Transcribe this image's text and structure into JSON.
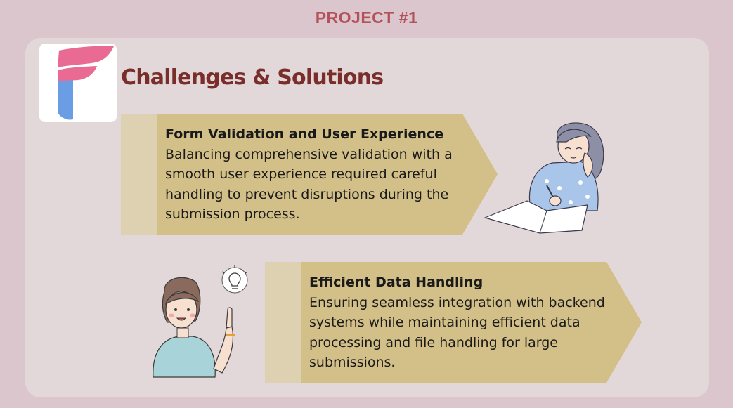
{
  "header": {
    "project_label": "PROJECT #1"
  },
  "section": {
    "title": "Challenges & Solutions"
  },
  "challenges": [
    {
      "heading": "Form Validation and User Experience",
      "body": "Balancing comprehensive validation with a smooth user experience required careful handling to prevent disruptions during the submission process."
    },
    {
      "heading": "Efficient Data Handling",
      "body": "Ensuring seamless integration with backend systems while maintaining efficient data processing and file handling for large submissions."
    }
  ],
  "colors": {
    "background": "#dbc6cd",
    "card": "#e3d8d9",
    "accent_text": "#b3525a",
    "title": "#7a2e2c",
    "arrow_fill": "#d3bf88",
    "arrow_tab": "#ddd1b1",
    "logo_pink": "#e96b93",
    "logo_blue": "#6a9de3"
  },
  "icons": {
    "logo": "letter-f-logo",
    "illustration_1": "girl-thinking-with-notebook",
    "illustration_2": "girl-with-lightbulb-idea"
  }
}
